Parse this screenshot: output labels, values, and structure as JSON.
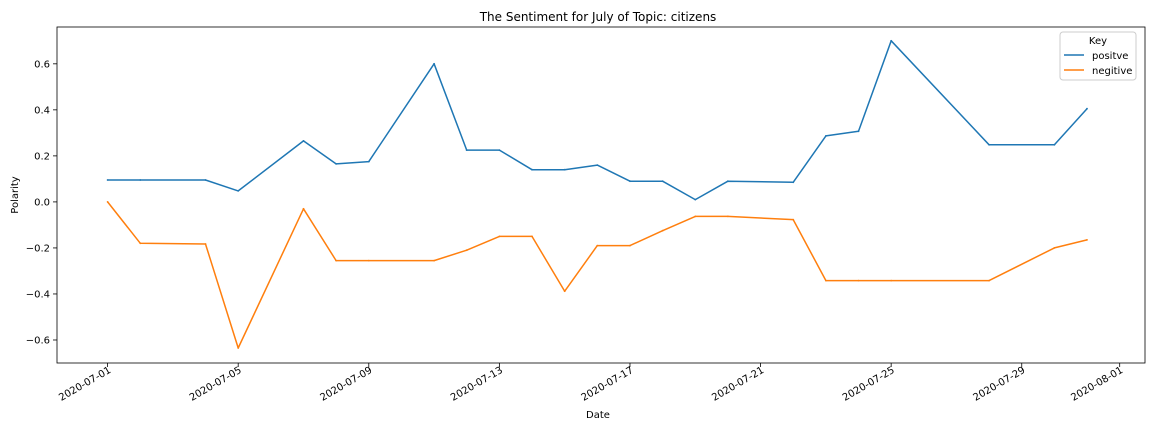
{
  "chart_data": {
    "type": "line",
    "title": "The Sentiment for July of Topic: citizens",
    "xlabel": "Date",
    "ylabel": "Polarity",
    "xlim": [
      "2020-07-01",
      "2020-08-01"
    ],
    "ylim": [
      -0.7,
      0.76
    ],
    "x_ticks": [
      "2020-07-01",
      "2020-07-05",
      "2020-07-09",
      "2020-07-13",
      "2020-07-17",
      "2020-07-21",
      "2020-07-25",
      "2020-07-29",
      "2020-08-01"
    ],
    "y_ticks": [
      -0.6,
      -0.4,
      -0.2,
      0.0,
      0.2,
      0.4,
      0.6
    ],
    "y_tick_labels": [
      "−0.6",
      "−0.4",
      "−0.2",
      "0.0",
      "0.2",
      "0.4",
      "0.6"
    ],
    "grid": false,
    "legend": {
      "title": "Key",
      "placement": "top-right"
    },
    "x": [
      "2020-07-01",
      "2020-07-02",
      "2020-07-04",
      "2020-07-05",
      "2020-07-07",
      "2020-07-08",
      "2020-07-09",
      "2020-07-11",
      "2020-07-12",
      "2020-07-13",
      "2020-07-14",
      "2020-07-15",
      "2020-07-16",
      "2020-07-17",
      "2020-07-18",
      "2020-07-19",
      "2020-07-20",
      "2020-07-22",
      "2020-07-23",
      "2020-07-24",
      "2020-07-25",
      "2020-07-28",
      "2020-07-30",
      "2020-07-31"
    ],
    "series": [
      {
        "name": "positve",
        "color": "#1f77b4",
        "values": [
          0.095,
          0.095,
          0.095,
          0.048,
          0.265,
          0.165,
          0.175,
          0.6,
          0.225,
          0.225,
          0.14,
          0.14,
          0.16,
          0.09,
          0.09,
          0.01,
          0.09,
          0.085,
          0.287,
          0.307,
          0.7,
          0.248,
          0.248,
          0.405
        ]
      },
      {
        "name": "negitive",
        "color": "#ff7f0e",
        "values": [
          0.0,
          -0.18,
          -0.183,
          -0.635,
          -0.03,
          -0.255,
          -0.255,
          -0.255,
          -0.21,
          -0.15,
          -0.15,
          -0.388,
          -0.19,
          -0.19,
          -0.125,
          -0.063,
          -0.063,
          -0.077,
          -0.342,
          -0.342,
          -0.342,
          -0.342,
          -0.2,
          -0.165
        ]
      }
    ]
  }
}
